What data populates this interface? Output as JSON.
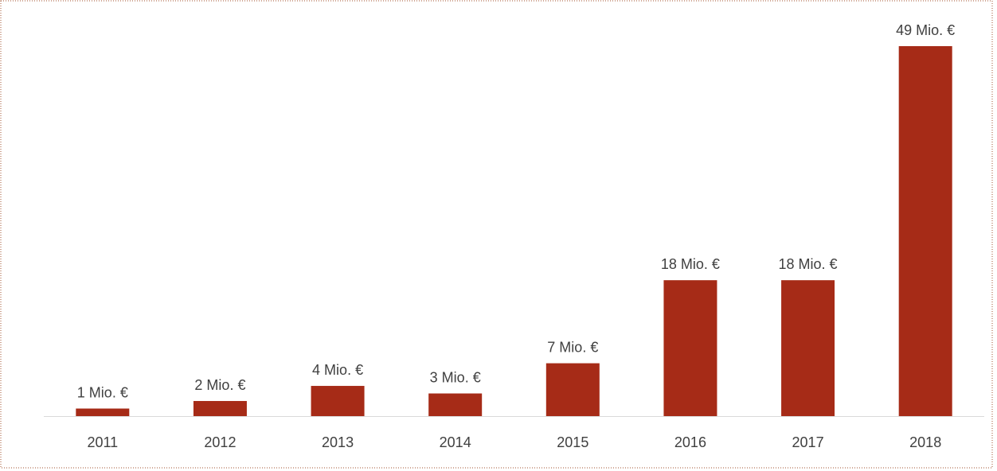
{
  "chart_data": {
    "type": "bar",
    "categories": [
      "2011",
      "2012",
      "2013",
      "2014",
      "2015",
      "2016",
      "2017",
      "2018"
    ],
    "values": [
      1,
      2,
      4,
      3,
      7,
      18,
      18,
      49
    ],
    "value_labels": [
      "1 Mio. €",
      "2 Mio. €",
      "4 Mio. €",
      "3 Mio. €",
      "7 Mio. €",
      "18 Mio. €",
      "18 Mio. €",
      "49 Mio. €"
    ],
    "color": "#a62b17"
  }
}
